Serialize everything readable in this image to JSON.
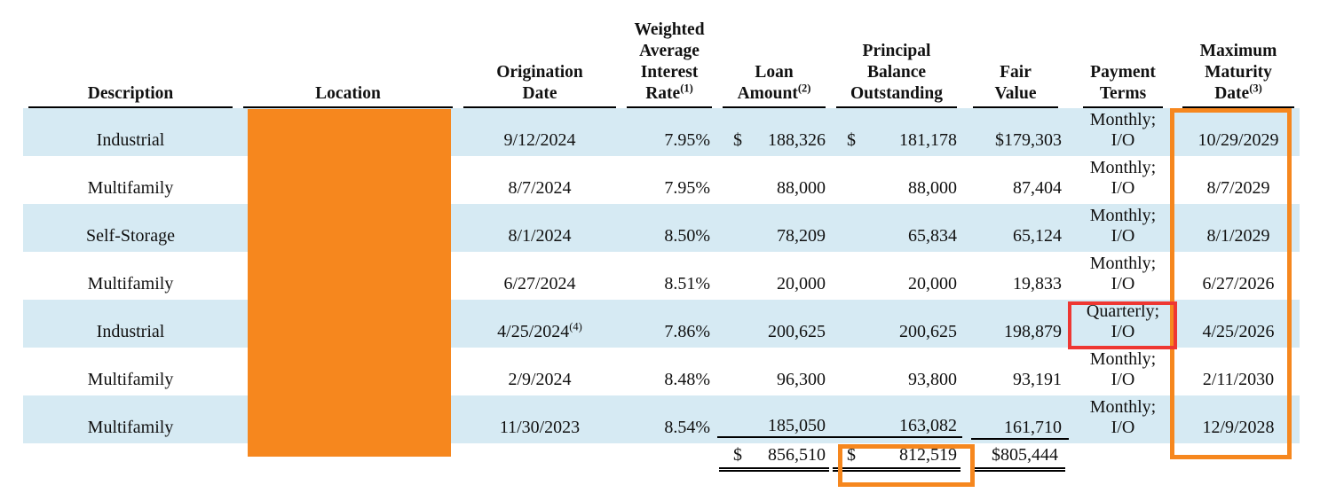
{
  "columns": {
    "description": {
      "label": "Description"
    },
    "location": {
      "label": "Location"
    },
    "origination_date": {
      "label": "Origination\nDate"
    },
    "interest_rate": {
      "label": "Weighted\nAverage\nInterest\nRate",
      "sup": "(1)"
    },
    "loan_amount": {
      "label": "Loan\nAmount",
      "sup": "(2)"
    },
    "principal_balance": {
      "label": "Principal\nBalance\nOutstanding"
    },
    "fair_value": {
      "label": "Fair\nValue"
    },
    "payment_terms": {
      "label": "Payment\nTerms"
    },
    "maturity_date": {
      "label": "Maximum\nMaturity\nDate",
      "sup": "(3)"
    }
  },
  "rows": [
    {
      "description": "Industrial",
      "origination_date": "9/12/2024",
      "rate": "7.95%",
      "loan_dollar": "$",
      "loan_amount": "188,326",
      "principal_dollar": "$",
      "principal_balance": "181,178",
      "fair_value": "$179,303",
      "payment_line1": "Monthly;",
      "payment_line2": "I/O",
      "maturity_date": "10/29/2029"
    },
    {
      "description": "Multifamily",
      "origination_date": "8/7/2024",
      "rate": "7.95%",
      "loan_amount": "88,000",
      "principal_balance": "88,000",
      "fair_value": "87,404",
      "payment_line1": "Monthly;",
      "payment_line2": "I/O",
      "maturity_date": "8/7/2029"
    },
    {
      "description": "Self-Storage",
      "origination_date": "8/1/2024",
      "rate": "8.50%",
      "loan_amount": "78,209",
      "principal_balance": "65,834",
      "fair_value": "65,124",
      "payment_line1": "Monthly;",
      "payment_line2": "I/O",
      "maturity_date": "8/1/2029"
    },
    {
      "description": "Multifamily",
      "origination_date": "6/27/2024",
      "rate": "8.51%",
      "loan_amount": "20,000",
      "principal_balance": "20,000",
      "fair_value": "19,833",
      "payment_line1": "Monthly;",
      "payment_line2": "I/O",
      "maturity_date": "6/27/2026"
    },
    {
      "description": "Industrial",
      "origination_date": "4/25/2024",
      "origination_sup": "(4)",
      "rate": "7.86%",
      "loan_amount": "200,625",
      "principal_balance": "200,625",
      "fair_value": "198,879",
      "payment_line1": "Quarterly;",
      "payment_line2": "I/O",
      "maturity_date": "4/25/2026"
    },
    {
      "description": "Multifamily",
      "origination_date": "2/9/2024",
      "rate": "8.48%",
      "loan_amount": "96,300",
      "principal_balance": "93,800",
      "fair_value": "93,191",
      "payment_line1": "Monthly;",
      "payment_line2": "I/O",
      "maturity_date": "2/11/2030"
    },
    {
      "description": "Multifamily",
      "origination_date": "11/30/2023",
      "rate": "8.54%",
      "loan_amount": "185,050",
      "principal_balance": "163,082",
      "fair_value": "161,710",
      "payment_line1": "Monthly;",
      "payment_line2": "I/O",
      "maturity_date": "12/9/2028"
    }
  ],
  "totals": {
    "loan_dollar": "$",
    "loan_amount": "856,510",
    "principal_dollar": "$",
    "principal_balance": "812,519",
    "fair_value": "$805,444"
  },
  "annotations": {
    "row_highlight_color": "#D6EAF3",
    "location_redaction_color": "#F6871E",
    "maturity_column_box_color": "#F6871E",
    "principal_total_box_color": "#F6871E",
    "payment_terms_box_color": "#EE3732"
  }
}
